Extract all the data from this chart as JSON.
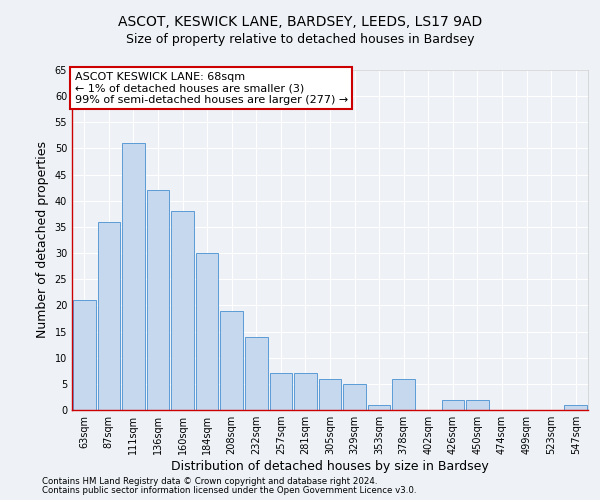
{
  "title1": "ASCOT, KESWICK LANE, BARDSEY, LEEDS, LS17 9AD",
  "title2": "Size of property relative to detached houses in Bardsey",
  "xlabel": "Distribution of detached houses by size in Bardsey",
  "ylabel": "Number of detached properties",
  "categories": [
    "63sqm",
    "87sqm",
    "111sqm",
    "136sqm",
    "160sqm",
    "184sqm",
    "208sqm",
    "232sqm",
    "257sqm",
    "281sqm",
    "305sqm",
    "329sqm",
    "353sqm",
    "378sqm",
    "402sqm",
    "426sqm",
    "450sqm",
    "474sqm",
    "499sqm",
    "523sqm",
    "547sqm"
  ],
  "values": [
    21,
    36,
    51,
    42,
    38,
    30,
    19,
    14,
    7,
    7,
    6,
    5,
    1,
    6,
    0,
    2,
    2,
    0,
    0,
    0,
    1
  ],
  "bar_color": "#c5d8ee",
  "bar_edge_color": "#5b9bd5",
  "annotation_text": "ASCOT KESWICK LANE: 68sqm\n← 1% of detached houses are smaller (3)\n99% of semi-detached houses are larger (277) →",
  "annotation_box_color": "#ffffff",
  "annotation_box_edge_color": "#cc0000",
  "ylim": [
    0,
    65
  ],
  "yticks": [
    0,
    5,
    10,
    15,
    20,
    25,
    30,
    35,
    40,
    45,
    50,
    55,
    60,
    65
  ],
  "footnote1": "Contains HM Land Registry data © Crown copyright and database right 2024.",
  "footnote2": "Contains public sector information licensed under the Open Government Licence v3.0.",
  "bg_color": "#eef2f7",
  "grid_color": "#ffffff",
  "title_fontsize": 10,
  "subtitle_fontsize": 9,
  "tick_fontsize": 7,
  "ylabel_fontsize": 9,
  "xlabel_fontsize": 9,
  "annot_fontsize": 8
}
